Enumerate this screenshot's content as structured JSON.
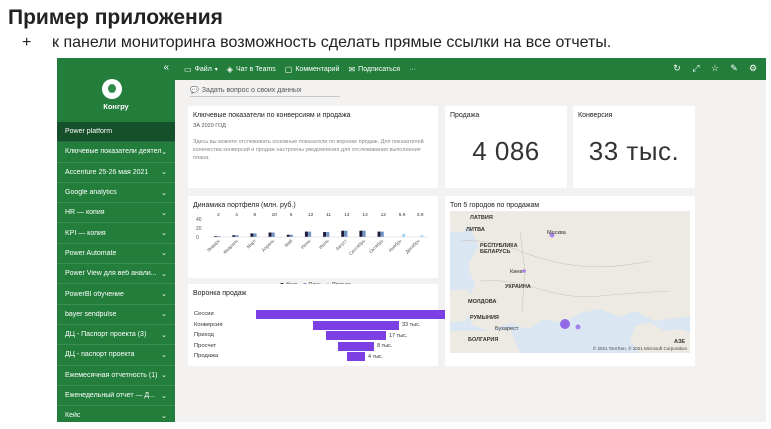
{
  "slide": {
    "title": "Пример приложения",
    "bullet_mark": "+",
    "bullet_text": "к панели мониторинга возможность сделать прямые ссылки на все отчеты."
  },
  "sidebar": {
    "brand": "Конгру",
    "collapse_glyph": "«",
    "items": [
      {
        "label": "Power platform",
        "active": true
      },
      {
        "label": "Ключевые показатели деятель..."
      },
      {
        "label": "Accenture 25-26 мая 2021"
      },
      {
        "label": "Google analytics"
      },
      {
        "label": "HR — копия"
      },
      {
        "label": "KPI — копия"
      },
      {
        "label": "Power Automate"
      },
      {
        "label": "Power View для веб анали..."
      },
      {
        "label": "PowerBI обучение"
      },
      {
        "label": "bayer sendpulse"
      },
      {
        "label": "ДЦ - Паспорт проекта (3)"
      },
      {
        "label": "ДЦ - паспорт проекта"
      },
      {
        "label": "Ежемесячная отчетность (1)"
      },
      {
        "label": "Еженедельный отчет — Д..."
      },
      {
        "label": "Кейс"
      }
    ]
  },
  "toolbar": {
    "file": "Файл",
    "teams": "Чат в Teams",
    "comments": "Комментарий",
    "subscribe": "Подписаться",
    "more": "···"
  },
  "qna": {
    "placeholder": "Задать вопрос о своих данных"
  },
  "tiles": {
    "info": {
      "title": "Ключевые показатели по конверсиям и продажа",
      "subtitle": "ЗА 2020 ГОД",
      "text": "Здесь вы можете отслеживать основные показатели по воронке продаж. Для показателей количества конверсий и продаж настроены уведомления для отслеживания выполнения плана."
    },
    "sales": {
      "title": "Продажа",
      "value": "4 086"
    },
    "conversion": {
      "title": "Конверсия",
      "value": "33 тыс."
    },
    "portfolio": {
      "title": "Динамика портфеля (млн. руб.)"
    },
    "funnel": {
      "title": "Воронка продаж"
    },
    "map": {
      "title": "Топ 5 городов по продажам",
      "footer": "© 2021 TomTom, © 2021 Microsoft Corporation"
    }
  },
  "map_labels": {
    "latvia": "ЛАТВИЯ",
    "lithuania": "ЛИТВА",
    "moscow": "Москва",
    "belarus": "РЕСПУБЛИКА БЕЛАРУСЬ",
    "kyiv": "Киев",
    "ukraine": "УКРАИНА",
    "moldova": "МОЛДОВА",
    "romania": "РУМЫНИЯ",
    "bulgaria": "БОЛГАРИЯ",
    "bucharest": "Бухарест",
    "azerbaijan": "АЗЕ"
  },
  "colors": {
    "accent": "#237e3c",
    "funnel": "#7b3fe4",
    "fact": "#1a1a3a",
    "plan": "#6f93c4",
    "forecast": "#9fd3ee"
  },
  "chart_data": [
    {
      "type": "bar",
      "title": "Динамика портфеля (млн. руб.)",
      "ylim": [
        0,
        40
      ],
      "yticks": [
        "40",
        "20",
        "0"
      ],
      "categories": [
        "Январь",
        "Февраль",
        "Март",
        "Апрель",
        "Май",
        "Июнь",
        "Июль",
        "Август",
        "Сентябрь",
        "Октябрь",
        "Ноябрь",
        "Декабрь"
      ],
      "series": [
        {
          "name": "Факт",
          "values": [
            2,
            4,
            8,
            10,
            5,
            12,
            11,
            14,
            14,
            12,
            0,
            0
          ]
        },
        {
          "name": "План",
          "values": [
            2,
            4,
            8,
            10,
            5,
            12,
            11,
            14,
            14,
            12,
            0,
            0
          ]
        },
        {
          "name": "Прогноз",
          "values": [
            0,
            0,
            0,
            0,
            0,
            0,
            0,
            0,
            0,
            0,
            6.9,
            3.9
          ]
        }
      ],
      "data_labels": [
        "2",
        "4",
        "8",
        "10",
        "5",
        "12",
        "11",
        "14",
        "14",
        "12",
        "6.9",
        "3.9"
      ],
      "legend": [
        "Факт",
        "План",
        "Прогноз"
      ],
      "legend_position": "bottom"
    },
    {
      "type": "bar",
      "title": "Воронка продаж",
      "orientation": "horizontal",
      "categories": [
        "Сессии",
        "Конверсия",
        "Приход",
        "Просчет",
        "Продажа"
      ],
      "values": [
        200000,
        33000,
        17000,
        8000,
        4000
      ],
      "data_labels": [
        "",
        "33 тыс.",
        "17 тыс.",
        "8 тыс.",
        "4 тыс."
      ]
    }
  ]
}
